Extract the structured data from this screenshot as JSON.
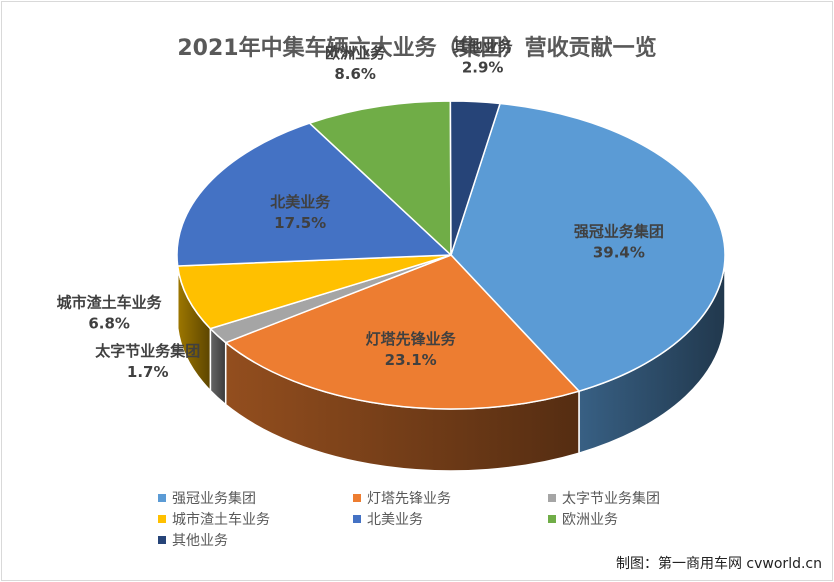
{
  "chart_data": {
    "type": "pie",
    "title": "2021年中集车辆六大业务（集团）营收贡献一览",
    "slices": [
      {
        "name": "强冠业务集团",
        "value": 39.4,
        "label": "39.4%",
        "color": "#5B9BD5"
      },
      {
        "name": "灯塔先锋业务",
        "value": 23.1,
        "label": "23.1%",
        "color": "#ED7D31"
      },
      {
        "name": "太字节业务集团",
        "value": 1.7,
        "label": "1.7%",
        "color": "#A5A5A5"
      },
      {
        "name": "城市渣土车业务",
        "value": 6.8,
        "label": "6.8%",
        "color": "#FFC000"
      },
      {
        "name": "北美业务",
        "value": 17.5,
        "label": "17.5%",
        "color": "#4472C4"
      },
      {
        "name": "欧洲业务",
        "value": 8.6,
        "label": "8.6%",
        "color": "#70AD47"
      },
      {
        "name": "其他业务",
        "value": 2.9,
        "label": "2.9%",
        "color": "#264478"
      }
    ],
    "legend_position": "bottom"
  },
  "footer": {
    "credit": "制图：第一商用车网 cvworld.cn"
  }
}
